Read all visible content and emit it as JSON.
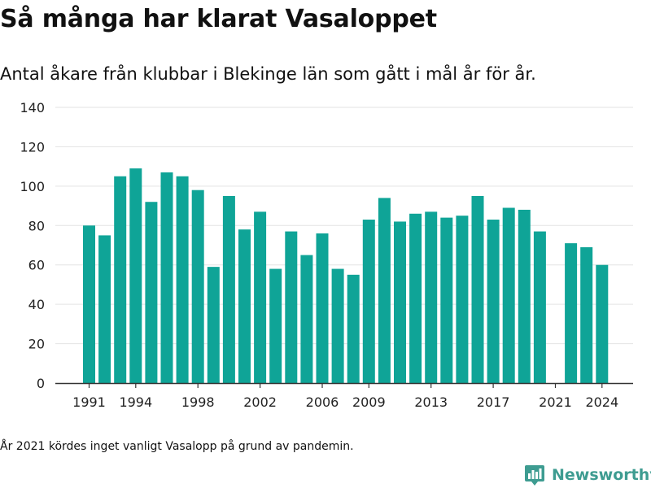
{
  "header": {
    "title": "Så många har klarat Vasaloppet",
    "subtitle": "Antal åkare från klubbar i Blekinge län som gått i mål år för år."
  },
  "footer": {
    "footnote": "År 2021 kördes inget vanligt Vasalopp på grund av pandemin.",
    "brand": "Newsworthy"
  },
  "colors": {
    "bar": "#0fa497",
    "grid": "#e3e3e3",
    "axis": "#333333",
    "brand": "#3e9c91"
  },
  "chart_data": {
    "type": "bar",
    "categories": [
      1991,
      1992,
      1993,
      1994,
      1995,
      1996,
      1997,
      1998,
      1999,
      2000,
      2001,
      2002,
      2003,
      2004,
      2005,
      2006,
      2007,
      2008,
      2009,
      2010,
      2011,
      2012,
      2013,
      2014,
      2015,
      2016,
      2017,
      2018,
      2019,
      2020,
      2021,
      2022,
      2023,
      2024
    ],
    "values": [
      80,
      75,
      105,
      109,
      92,
      107,
      105,
      98,
      59,
      95,
      78,
      87,
      58,
      77,
      65,
      76,
      58,
      55,
      83,
      94,
      82,
      86,
      87,
      84,
      85,
      95,
      83,
      89,
      88,
      77,
      null,
      71,
      69,
      60
    ],
    "x_tick_labels": [
      "1991",
      "1994",
      "1998",
      "2002",
      "2006",
      "2009",
      "2013",
      "2017",
      "2021",
      "2024"
    ],
    "y_ticks": [
      0,
      20,
      40,
      60,
      80,
      100,
      120,
      140
    ],
    "ylim": [
      0,
      140
    ],
    "grid": true,
    "legend": "none",
    "xlabel": "",
    "ylabel": ""
  }
}
